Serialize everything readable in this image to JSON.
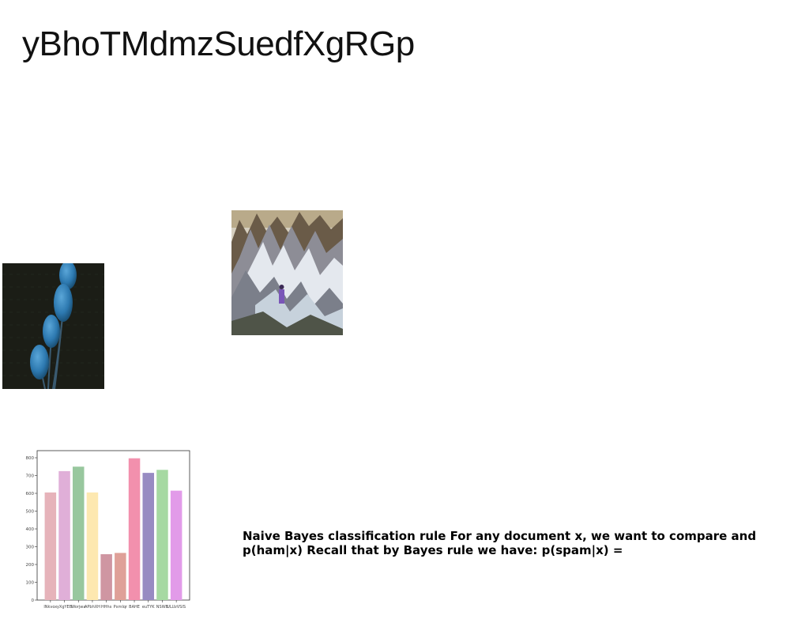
{
  "page": {
    "title": "yBhoTMdmzSuedfXgRGp",
    "caption": "Naive Bayes classification rule For any document x, we want to compare and p(ham|x) Recall that by Bayes rule we have: p(spam|x) ="
  },
  "images": {
    "plants": "blue-spherical-plants-on-dark-background",
    "mountain": "snowy-mountain-ridge-with-hiker"
  },
  "chart_data": {
    "type": "bar",
    "categories": [
      "lNkvox",
      "yXgYEB",
      "Worjwa",
      "APbhXH",
      "HHhs",
      "Pxmlqr",
      "BAHE",
      "euTYK",
      "NSWB",
      "ULUzVSIS"
    ],
    "values": [
      605,
      725,
      750,
      605,
      258,
      265,
      797,
      715,
      732,
      615
    ],
    "colors": [
      "#e6b3ba",
      "#e0afd8",
      "#98c79e",
      "#fde8b0",
      "#cf96a2",
      "#dfa098",
      "#f290ad",
      "#988bc2",
      "#a6d9a2",
      "#e29be9"
    ],
    "ylim": [
      0,
      840
    ],
    "yticks": [
      0,
      100,
      200,
      300,
      400,
      500,
      600,
      700,
      800
    ],
    "grid": false
  }
}
